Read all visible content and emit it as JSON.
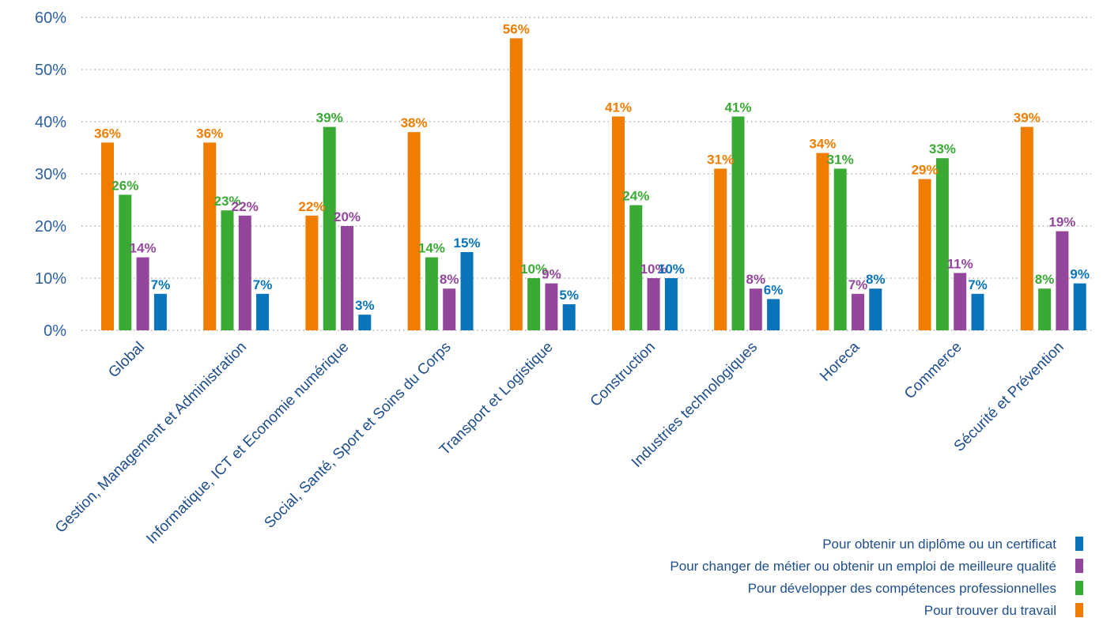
{
  "chart_data": {
    "type": "bar",
    "categories": [
      "Global",
      "Gestion, Management et Administration",
      "Informatique, ICT et Economie numérique",
      "Social, Santé, Sport et Soins du Corps",
      "Transport et Logistique",
      "Construction",
      "Industries technologiques",
      "Horeca",
      "Commerce",
      "Sécurité et Prévention"
    ],
    "series": [
      {
        "name": "Pour trouver du travail",
        "color": "#f07d00",
        "values": [
          36,
          36,
          22,
          38,
          56,
          41,
          31,
          34,
          29,
          39
        ]
      },
      {
        "name": "Pour développer des compétences professionnelles",
        "color": "#3aaa35",
        "values": [
          26,
          23,
          39,
          14,
          10,
          24,
          41,
          31,
          33,
          8
        ]
      },
      {
        "name": "Pour changer de métier ou obtenir un emploi de meilleure qualité",
        "color": "#93479b",
        "values": [
          14,
          22,
          20,
          8,
          9,
          10,
          8,
          7,
          11,
          19
        ]
      },
      {
        "name": "Pour obtenir un diplôme ou un certificat",
        "color": "#0a74ba",
        "values": [
          7,
          7,
          3,
          15,
          5,
          10,
          6,
          8,
          7,
          9
        ]
      }
    ],
    "y_ticks": [
      "0%",
      "10%",
      "20%",
      "30%",
      "40%",
      "50%",
      "60%"
    ],
    "ylim": [
      0,
      60
    ],
    "value_suffix": "%",
    "grid": "dotted horizontal",
    "legend_position": "bottom-right",
    "legend_order": [
      3,
      2,
      1,
      0
    ],
    "title": "",
    "xlabel": "",
    "ylabel": ""
  }
}
